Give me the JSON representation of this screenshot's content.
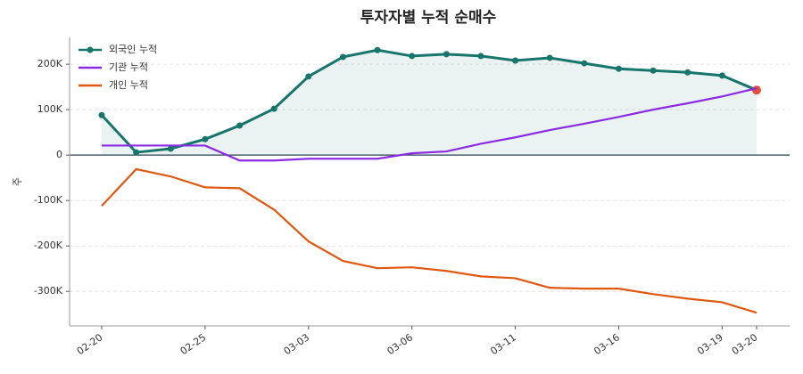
{
  "chart_data": {
    "type": "line",
    "title": "투자자별 누적 순매수",
    "y_label": "주",
    "categories": [
      "02-20",
      null,
      null,
      "02-25",
      null,
      null,
      "03-03",
      null,
      null,
      "03-06",
      null,
      null,
      "03-11",
      null,
      null,
      "03-16",
      null,
      null,
      "03-19",
      "03-20"
    ],
    "series": [
      {
        "name": "외국인 누적",
        "color": "#17756b",
        "markers": true,
        "fill": true,
        "values": [
          88000,
          6000,
          14000,
          35000,
          65000,
          102000,
          173000,
          216000,
          231000,
          218000,
          222000,
          218000,
          208000,
          214000,
          202000,
          190000,
          186000,
          182000,
          175000,
          143000
        ]
      },
      {
        "name": "기관 누적",
        "color": "#8a2be2",
        "values": [
          21000,
          21000,
          21000,
          21000,
          -12000,
          -12000,
          -8000,
          -8000,
          -8000,
          4000,
          8000,
          25000,
          39000,
          55000,
          69000,
          84000,
          100000,
          114000,
          129000,
          147000
        ]
      },
      {
        "name": "개인 누적",
        "color": "#e0570f",
        "values": [
          -112000,
          -31000,
          -47000,
          -71000,
          -73000,
          -120000,
          -190000,
          -233000,
          -249000,
          -247000,
          -255000,
          -267000,
          -271000,
          -292000,
          -294000,
          -294000,
          -306000,
          -316000,
          -324000,
          -347000
        ]
      }
    ],
    "ylim": [
      -376000,
      259000
    ],
    "yticks": [
      {
        "value": -300000,
        "label": "-300K"
      },
      {
        "value": -200000,
        "label": "-200K"
      },
      {
        "value": -100000,
        "label": "-100K"
      },
      0,
      {
        "value": 100000,
        "label": "100K"
      },
      {
        "value": 200000,
        "label": "200K"
      }
    ],
    "grid": true,
    "legend": "upper-left",
    "end_marker_color": "#e74c3c"
  }
}
